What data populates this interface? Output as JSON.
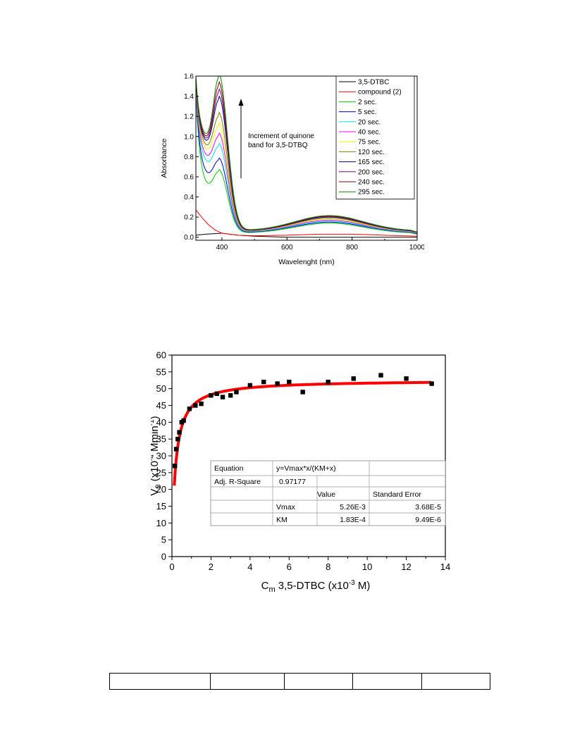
{
  "chart_data": [
    {
      "type": "line",
      "xlabel": "Wavelenght (nm)",
      "ylabel": "Absorbance",
      "xlim": [
        320,
        1000
      ],
      "ylim": [
        -0.03,
        1.6
      ],
      "xticks": [
        "400",
        "600",
        "800",
        "1000"
      ],
      "yticks": [
        "0.0",
        "0.2",
        "0.4",
        "0.6",
        "0.8",
        "1.0",
        "1.2",
        "1.4",
        "1.6"
      ],
      "annotation": [
        "Increment of quinone",
        "band for 3,5-DTBQ"
      ],
      "legend_position": "top-right",
      "series": [
        {
          "name": "3,5-DTBC",
          "color": "#000000",
          "x": [
            320,
            350,
            400,
            450,
            500,
            600,
            700,
            800,
            900,
            1000
          ],
          "y": [
            0.02,
            0.03,
            0.04,
            0.02,
            0.01,
            0.0,
            0.0,
            0.0,
            0.0,
            0.0
          ]
        },
        {
          "name": "compound (2)",
          "color": "#ff0000",
          "x": [
            320,
            340,
            360,
            380,
            400,
            450,
            500,
            600,
            700,
            800,
            900,
            1000
          ],
          "y": [
            0.27,
            0.19,
            0.12,
            0.07,
            0.04,
            0.02,
            0.015,
            0.02,
            0.03,
            0.03,
            0.02,
            0.01
          ]
        },
        {
          "name": "2 sec.",
          "color": "#00cc00",
          "peak": 0.65,
          "trough": 0.46,
          "start": 1.45,
          "min": 0.07,
          "broad": 0.14,
          "end": 0.03
        },
        {
          "name": "5 sec.",
          "color": "#0000cc",
          "peak": 0.76,
          "trough": 0.57,
          "start": 1.47,
          "min": 0.08,
          "broad": 0.15,
          "end": 0.035
        },
        {
          "name": "20 sec.",
          "color": "#00e0ff",
          "peak": 0.9,
          "trough": 0.68,
          "start": 1.5,
          "min": 0.085,
          "broad": 0.16,
          "end": 0.04
        },
        {
          "name": "40 sec.",
          "color": "#ff00ff",
          "peak": 1.0,
          "trough": 0.74,
          "start": 1.52,
          "min": 0.09,
          "broad": 0.17,
          "end": 0.042
        },
        {
          "name": "75 sec.",
          "color": "#f5f500",
          "peak": 1.1,
          "trough": 0.8,
          "start": 1.54,
          "min": 0.095,
          "broad": 0.18,
          "end": 0.045
        },
        {
          "name": "120 sec.",
          "color": "#808000",
          "peak": 1.2,
          "trough": 0.84,
          "start": 1.55,
          "min": 0.1,
          "broad": 0.19,
          "end": 0.047
        },
        {
          "name": "165 sec.",
          "color": "#000088",
          "peak": 1.36,
          "trough": 0.88,
          "start": 1.56,
          "min": 0.1,
          "broad": 0.2,
          "end": 0.05
        },
        {
          "name": "200 sec.",
          "color": "#880088",
          "peak": 1.43,
          "trough": 0.9,
          "start": 1.57,
          "min": 0.105,
          "broad": 0.205,
          "end": 0.05
        },
        {
          "name": "240 sec.",
          "color": "#880000",
          "peak": 1.5,
          "trough": 0.92,
          "start": 1.58,
          "min": 0.11,
          "broad": 0.21,
          "end": 0.052
        },
        {
          "name": "295 sec.",
          "color": "#008800",
          "peak": 1.58,
          "trough": 0.94,
          "start": 1.6,
          "min": 0.11,
          "broad": 0.215,
          "end": 0.053
        }
      ]
    },
    {
      "type": "scatter",
      "xlabel": "3,5-DTBC (x10",
      "xlabel_main": "C",
      "xlabel_sub": "m",
      "xlabel_sup": "-3",
      "xlabel_end": " M)",
      "ylabel_main": "V",
      "ylabel_sub": "0",
      "ylabel_mid": " (x10",
      "ylabel_sup": "-4",
      "ylabel_mid2": " Mmin",
      "ylabel_sup2": "-1",
      "ylabel_end": ")",
      "xlim": [
        0,
        14
      ],
      "ylim": [
        0,
        60
      ],
      "xticks": [
        "0",
        "2",
        "4",
        "6",
        "8",
        "10",
        "12",
        "14"
      ],
      "yticks": [
        "0",
        "5",
        "10",
        "15",
        "20",
        "25",
        "30",
        "35",
        "40",
        "45",
        "50",
        "55",
        "60"
      ],
      "points": {
        "x": [
          0.15,
          0.22,
          0.3,
          0.38,
          0.5,
          0.6,
          0.9,
          1.2,
          1.5,
          2.0,
          2.3,
          2.6,
          3.0,
          3.3,
          4.0,
          4.7,
          5.4,
          6.0,
          6.7,
          8.0,
          9.3,
          10.7,
          12.0,
          13.3
        ],
        "y": [
          27,
          32,
          35,
          37,
          40,
          40.5,
          44,
          45,
          45.5,
          48,
          48.5,
          47.5,
          48,
          49,
          51,
          52,
          51.5,
          52,
          49,
          52,
          53,
          54,
          53,
          51.5
        ]
      },
      "fit": {
        "Vmax": 0.00526,
        "KM": 0.000183,
        "color": "#ff0000"
      },
      "fit_table": {
        "equation_label": "Equation",
        "equation_value": "y=Vmax*x/(KM+x)",
        "r_label": "Adj. R-Square",
        "r_value": "0.97177",
        "value_header": "Value",
        "se_header": "Standard Error",
        "rows": [
          {
            "name": "Vmax",
            "value": "5.26E-3",
            "se": "3.68E-5"
          },
          {
            "name": "KM",
            "value": "1.83E-4",
            "se": "9.49E-6"
          }
        ]
      }
    }
  ]
}
